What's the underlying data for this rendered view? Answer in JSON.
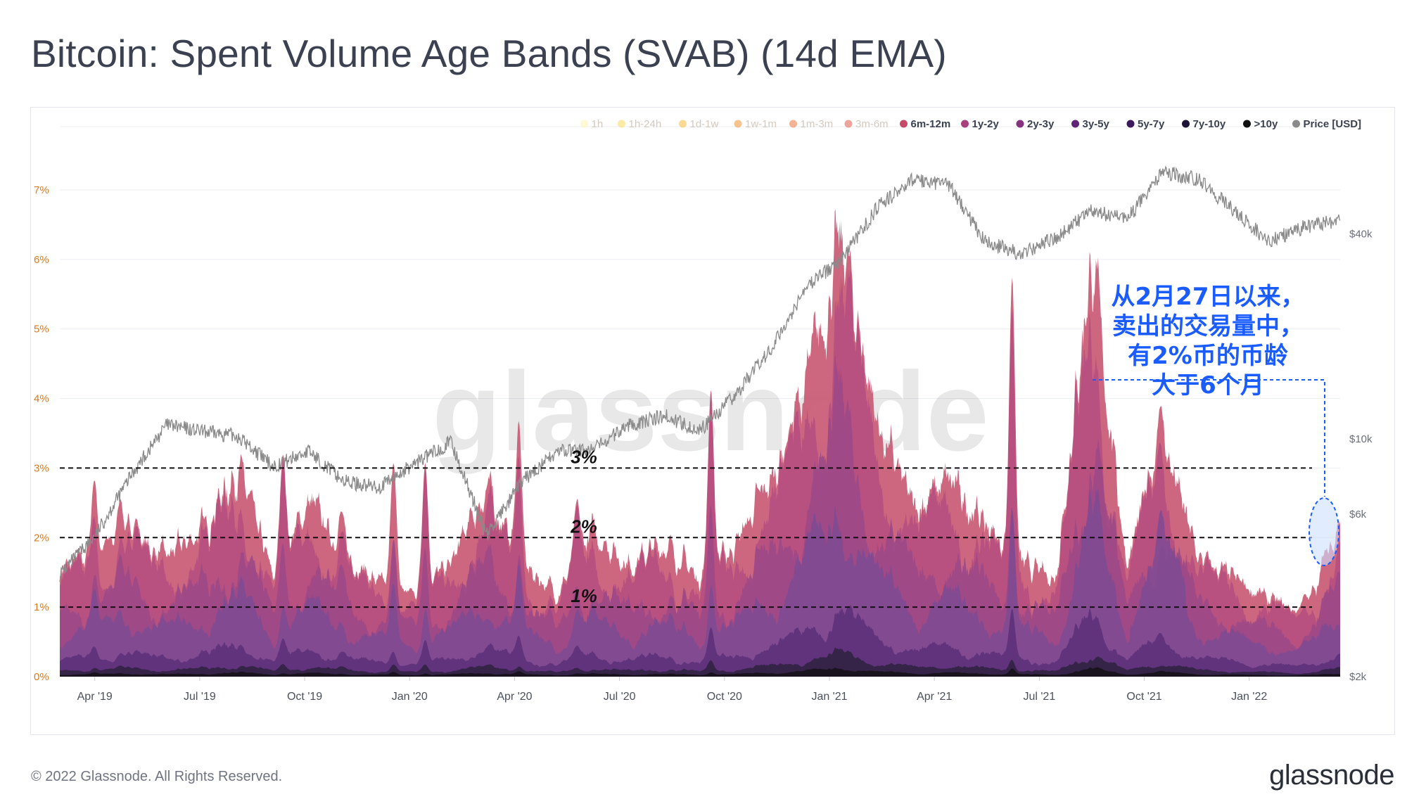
{
  "title": "Bitcoin: Spent Volume Age Bands (SVAB) (14d EMA)",
  "footer": "© 2022 Glassnode. All Rights Reserved.",
  "brand": "glassnode",
  "watermark": "glassnode",
  "colors": {
    "grid": "#eceef2",
    "left_tick": "#d97a1f",
    "right_tick": "#6b6f78",
    "price_line": "#8a8a8a",
    "guide": "#111111",
    "callout": "#1a5cff"
  },
  "chart_data": {
    "type": "area",
    "title": "Bitcoin: Spent Volume Age Bands (SVAB) (14d EMA)",
    "x_ticks": [
      "Apr '19",
      "Jul '19",
      "Oct '19",
      "Jan '20",
      "Apr '20",
      "Jul '20",
      "Oct '20",
      "Jan '21",
      "Apr '21",
      "Jul '21",
      "Oct '21",
      "Jan '22"
    ],
    "y_left_ticks": [
      "0%",
      "1%",
      "2%",
      "3%",
      "4%",
      "5%",
      "6%",
      "7%"
    ],
    "y_left_range": [
      0,
      7.8
    ],
    "y_right_ticks": [
      "$2k",
      "$6k",
      "$10k",
      "$40k"
    ],
    "legend_position": "top-right",
    "legend": [
      {
        "name": "1h",
        "color": "#fff6a8",
        "faded": true
      },
      {
        "name": "1h-24h",
        "color": "#f6d84a",
        "faded": true
      },
      {
        "name": "1d-1w",
        "color": "#f5b52a",
        "faded": true
      },
      {
        "name": "1w-1m",
        "color": "#f08a1c",
        "faded": true
      },
      {
        "name": "1m-3m",
        "color": "#e96a2a",
        "faded": true
      },
      {
        "name": "3m-6m",
        "color": "#d9493a",
        "faded": true
      },
      {
        "name": "6m-12m",
        "color": "#c84a6a",
        "faded": false
      },
      {
        "name": "1y-2y",
        "color": "#a8407e",
        "faded": false
      },
      {
        "name": "2y-3y",
        "color": "#86337e",
        "faded": false
      },
      {
        "name": "3y-5y",
        "color": "#5f2378",
        "faded": false
      },
      {
        "name": "5y-7y",
        "color": "#3c1a5c",
        "faded": false
      },
      {
        "name": "7y-10y",
        "color": "#1e1436",
        "faded": false
      },
      {
        "name": ">10y",
        "color": "#111111",
        "faded": false
      },
      {
        "name": "Price [USD]",
        "color": "#8a8a8a",
        "faded": false
      }
    ],
    "reference_lines": [
      {
        "value": 3,
        "label": "3%"
      },
      {
        "value": 2,
        "label": "2%"
      },
      {
        "value": 1,
        "label": "1%"
      }
    ],
    "series_totals": {
      "name": "6m-12m",
      "x": [
        "2019-03",
        "2019-04",
        "2019-05",
        "2019-06",
        "2019-07",
        "2019-08",
        "2019-09",
        "2019-10",
        "2019-11",
        "2019-12",
        "2020-01",
        "2020-02",
        "2020-03",
        "2020-04",
        "2020-05",
        "2020-06",
        "2020-07",
        "2020-08",
        "2020-09",
        "2020-10",
        "2020-11",
        "2020-12",
        "2021-01",
        "2021-02",
        "2021-03",
        "2021-04",
        "2021-05",
        "2021-06",
        "2021-07",
        "2021-08",
        "2021-09",
        "2021-10",
        "2021-11",
        "2021-12",
        "2022-01",
        "2022-02",
        "2022-03"
      ],
      "values": [
        1.5,
        1.8,
        2.0,
        1.7,
        2.1,
        3.0,
        1.4,
        2.5,
        1.8,
        1.3,
        1.2,
        1.6,
        2.7,
        1.6,
        1.2,
        2.1,
        1.6,
        1.9,
        1.4,
        1.9,
        2.8,
        4.2,
        6.2,
        3.6,
        2.4,
        2.8,
        2.2,
        1.6,
        1.4,
        6.0,
        1.6,
        3.4,
        1.7,
        1.4,
        1.1,
        0.9,
        2.3
      ]
    },
    "price_series": {
      "name": "Price [USD]",
      "x": [
        "2019-03",
        "2019-04",
        "2019-05",
        "2019-06",
        "2019-07",
        "2019-08",
        "2019-09",
        "2019-10",
        "2019-11",
        "2019-12",
        "2020-01",
        "2020-02",
        "2020-03",
        "2020-04",
        "2020-05",
        "2020-06",
        "2020-07",
        "2020-08",
        "2020-09",
        "2020-10",
        "2020-11",
        "2020-12",
        "2021-01",
        "2021-02",
        "2021-03",
        "2021-04",
        "2021-05",
        "2021-06",
        "2021-07",
        "2021-08",
        "2021-09",
        "2021-10",
        "2021-11",
        "2021-12",
        "2022-01",
        "2022-02",
        "2022-03"
      ],
      "values": [
        4000,
        5200,
        7800,
        11000,
        10500,
        10200,
        8300,
        9200,
        7500,
        7200,
        8500,
        9800,
        5200,
        7500,
        9200,
        9300,
        11000,
        11700,
        10600,
        13500,
        18500,
        28000,
        34000,
        48000,
        58000,
        56000,
        38000,
        35000,
        39000,
        47000,
        44000,
        61000,
        58000,
        47000,
        38000,
        42000,
        44000
      ]
    },
    "annotation": {
      "lines": [
        "从2月27日以来，",
        "卖出的交易量中，",
        "有2%币的币龄",
        "大于6个月"
      ],
      "target_x": "2022-03"
    }
  }
}
